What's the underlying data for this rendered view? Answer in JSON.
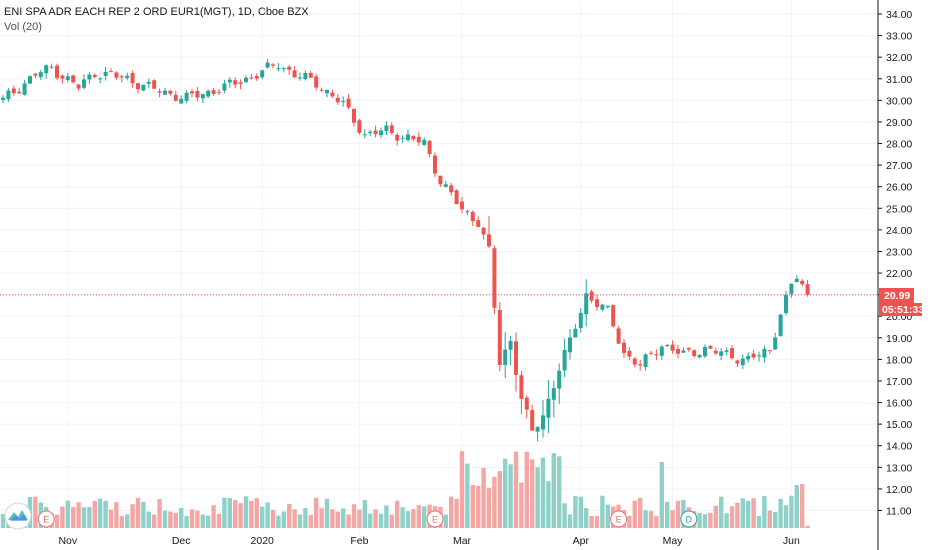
{
  "legend": {
    "title": "ENI SPA ADR EACH REP 2 ORD EUR1(MGT), 1D, Cboe BZX",
    "volume": "Vol (20)"
  },
  "colors": {
    "up": "#26a69a",
    "down": "#ef5350",
    "up_vol": "#8fd0c8",
    "down_vol": "#f4a6a4",
    "price_tag": "#ef5350",
    "grid": "#f0f3fa",
    "axis_line": "#131722"
  },
  "price_tag": {
    "price": "20.99",
    "countdown": "05:51:33",
    "value": 20.99
  },
  "icons": {
    "logo": "tradingview-logo-icon"
  },
  "events": [
    {
      "label": "E",
      "type": "earnings",
      "index": 8
    },
    {
      "label": "E",
      "type": "earnings",
      "index": 80
    },
    {
      "label": "E",
      "type": "earnings",
      "index": 114
    },
    {
      "label": "D",
      "type": "dividend",
      "index": 127
    }
  ],
  "chart_data": {
    "type": "candlestick",
    "y_axis_ticks": [
      "34.00",
      "33.00",
      "32.00",
      "31.00",
      "30.00",
      "29.00",
      "28.00",
      "27.00",
      "26.00",
      "25.00",
      "24.00",
      "23.00",
      "22.00",
      "21.00",
      "20.00",
      "19.00",
      "18.00",
      "17.00",
      "16.00",
      "15.00",
      "14.00",
      "13.00",
      "12.00",
      "11.00"
    ],
    "ylim": [
      10.3,
      34.4
    ],
    "x_axis_labels": [
      {
        "label": "Nov",
        "index": 12
      },
      {
        "label": "Dec",
        "index": 33
      },
      {
        "label": "2020",
        "index": 48
      },
      {
        "label": "Feb",
        "index": 66
      },
      {
        "label": "Mar",
        "index": 85
      },
      {
        "label": "Apr",
        "index": 107
      },
      {
        "label": "May",
        "index": 124
      },
      {
        "label": "Jun",
        "index": 146
      }
    ],
    "count": 150,
    "ohlc_key": [
      {
        "i": 0,
        "c": 30.0
      },
      {
        "i": 6,
        "c": 31.2
      },
      {
        "i": 9,
        "c": 31.5
      },
      {
        "i": 14,
        "c": 30.6
      },
      {
        "i": 17,
        "c": 31.3
      },
      {
        "i": 23,
        "c": 31.0
      },
      {
        "i": 28,
        "c": 30.5
      },
      {
        "i": 34,
        "c": 30.1
      },
      {
        "i": 41,
        "c": 30.6
      },
      {
        "i": 47,
        "c": 31.2
      },
      {
        "i": 51,
        "c": 31.7
      },
      {
        "i": 54,
        "c": 31.2
      },
      {
        "i": 58,
        "c": 30.8
      },
      {
        "i": 63,
        "c": 29.8
      },
      {
        "i": 67,
        "c": 28.4
      },
      {
        "i": 71,
        "c": 28.6
      },
      {
        "i": 78,
        "c": 28.0
      },
      {
        "i": 81,
        "c": 26.3
      },
      {
        "i": 85,
        "c": 24.9
      },
      {
        "i": 88,
        "c": 24.4
      },
      {
        "i": 90,
        "c": 23.0
      },
      {
        "i": 92,
        "c": 17.8
      },
      {
        "i": 94,
        "c": 18.9
      },
      {
        "i": 96,
        "c": 16.2
      },
      {
        "i": 98,
        "c": 14.6
      },
      {
        "i": 100,
        "c": 15.4
      },
      {
        "i": 103,
        "c": 17.6
      },
      {
        "i": 105,
        "c": 18.8
      },
      {
        "i": 108,
        "c": 21.0
      },
      {
        "i": 112,
        "c": 20.2
      },
      {
        "i": 115,
        "c": 18.3
      },
      {
        "i": 118,
        "c": 17.7
      },
      {
        "i": 122,
        "c": 18.7
      },
      {
        "i": 126,
        "c": 18.2
      },
      {
        "i": 130,
        "c": 18.5
      },
      {
        "i": 134,
        "c": 18.2
      },
      {
        "i": 138,
        "c": 18.0
      },
      {
        "i": 142,
        "c": 18.4
      },
      {
        "i": 144,
        "c": 20.2
      },
      {
        "i": 146,
        "c": 21.4
      },
      {
        "i": 147,
        "c": 21.8
      },
      {
        "i": 149,
        "c": 20.99
      }
    ],
    "volume_ylim": [
      0,
      60
    ]
  }
}
